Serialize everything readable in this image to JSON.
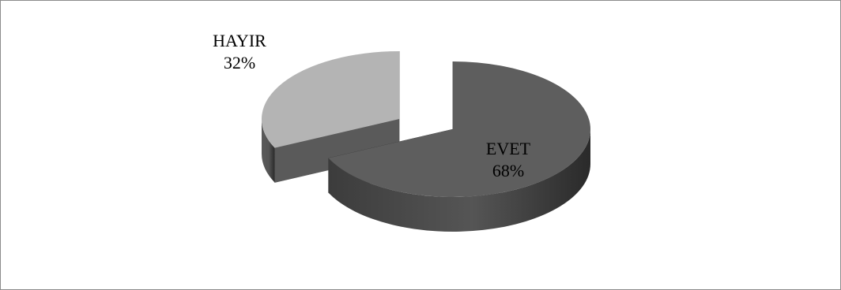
{
  "chart_data": {
    "type": "pie",
    "style": "3d-exploded",
    "categories": [
      "EVET",
      "HAYIR"
    ],
    "values": [
      68,
      32
    ],
    "labels": [
      "EVET\n68%",
      "HAYIR\n32%"
    ],
    "colors": {
      "EVET_top": "#5e5e5e",
      "EVET_side": "#3c3c3c",
      "HAYIR_top": "#b4b4b4",
      "HAYIR_side": "#5a5a5a"
    },
    "legend": "none",
    "grid": false
  }
}
